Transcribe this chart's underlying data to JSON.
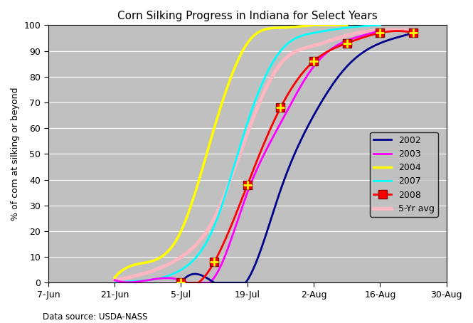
{
  "title": "Corn Silking Progress in Indiana for Select Years",
  "ylabel": "% of corn at silking or beyond",
  "data_source": "Data source: USDA-NASS",
  "background_color": "#c0c0c0",
  "ylim": [
    0,
    100
  ],
  "yticks": [
    0,
    10,
    20,
    30,
    40,
    50,
    60,
    70,
    80,
    90,
    100
  ],
  "series": {
    "2002": {
      "color": "#00008B",
      "linewidth": 2.0,
      "days_from_jun7": [
        28,
        35,
        42,
        49,
        56,
        63,
        70,
        77
      ],
      "values": [
        0,
        0,
        1,
        36,
        65,
        84,
        93,
        97
      ]
    },
    "2003": {
      "color": "#FF00FF",
      "linewidth": 2.0,
      "days_from_jun7": [
        14,
        21,
        28,
        35,
        42,
        49,
        56,
        63,
        70
      ],
      "values": [
        1,
        1,
        1,
        2,
        35,
        62,
        84,
        94,
        98
      ]
    },
    "2004": {
      "color": "#FFFF00",
      "linewidth": 2.5,
      "days_from_jun7": [
        14,
        21,
        28,
        35,
        42,
        49,
        56,
        63
      ],
      "values": [
        2,
        8,
        20,
        60,
        93,
        99,
        100,
        100
      ]
    },
    "2007": {
      "color": "#00FFFF",
      "linewidth": 2.0,
      "days_from_jun7": [
        14,
        21,
        28,
        35,
        42,
        49,
        56,
        63,
        70
      ],
      "values": [
        0,
        1,
        5,
        22,
        62,
        90,
        97,
        99,
        100
      ]
    },
    "2008": {
      "color": "#FF0000",
      "linewidth": 2.0,
      "days_from_jun7": [
        28,
        35,
        42,
        49,
        56,
        63,
        70,
        77
      ],
      "values": [
        0,
        8,
        38,
        68,
        86,
        93,
        97,
        97
      ]
    },
    "5-Yr avg": {
      "color": "#FFB6C1",
      "linewidth": 3.5,
      "days_from_jun7": [
        14,
        21,
        28,
        35,
        42,
        49,
        56,
        63,
        70,
        77
      ],
      "values": [
        1,
        4,
        10,
        25,
        58,
        85,
        92,
        96,
        98,
        98
      ]
    }
  },
  "xtick_days": [
    0,
    14,
    28,
    42,
    56,
    70,
    84
  ],
  "xtick_labels": [
    "7-Jun",
    "21-Jun",
    "5-Jul",
    "19-Jul",
    "2-Aug",
    "16-Aug",
    "30-Aug"
  ]
}
